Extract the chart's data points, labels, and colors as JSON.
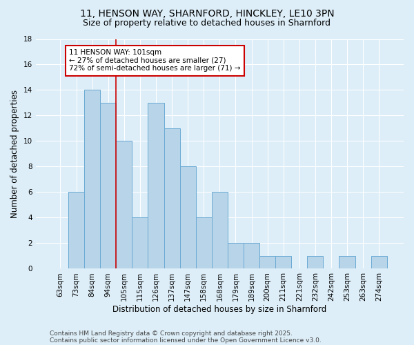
{
  "title_line1": "11, HENSON WAY, SHARNFORD, HINCKLEY, LE10 3PN",
  "title_line2": "Size of property relative to detached houses in Sharnford",
  "xlabel": "Distribution of detached houses by size in Sharnford",
  "ylabel": "Number of detached properties",
  "categories": [
    "63sqm",
    "73sqm",
    "84sqm",
    "94sqm",
    "105sqm",
    "115sqm",
    "126sqm",
    "137sqm",
    "147sqm",
    "158sqm",
    "168sqm",
    "179sqm",
    "189sqm",
    "200sqm",
    "211sqm",
    "221sqm",
    "232sqm",
    "242sqm",
    "253sqm",
    "263sqm",
    "274sqm"
  ],
  "values": [
    0,
    6,
    14,
    13,
    10,
    4,
    13,
    11,
    8,
    4,
    6,
    2,
    2,
    1,
    1,
    0,
    1,
    0,
    1,
    0,
    1
  ],
  "bar_color": "#b8d4e8",
  "bar_edgecolor": "#6aaad4",
  "background_color": "#ddeef8",
  "plot_bg_color": "#ddeef8",
  "grid_color": "#ffffff",
  "red_line_x": 3.5,
  "red_line_color": "#cc0000",
  "annotation_text": "11 HENSON WAY: 101sqm\n← 27% of detached houses are smaller (27)\n72% of semi-detached houses are larger (71) →",
  "annotation_box_facecolor": "#ffffff",
  "annotation_box_edgecolor": "#cc0000",
  "ylim": [
    0,
    18
  ],
  "yticks": [
    0,
    2,
    4,
    6,
    8,
    10,
    12,
    14,
    16,
    18
  ],
  "footnote_line1": "Contains HM Land Registry data © Crown copyright and database right 2025.",
  "footnote_line2": "Contains public sector information licensed under the Open Government Licence v3.0.",
  "title_fontsize": 10,
  "subtitle_fontsize": 9,
  "axis_label_fontsize": 8.5,
  "tick_fontsize": 7.5,
  "annotation_fontsize": 7.5,
  "footnote_fontsize": 6.5
}
